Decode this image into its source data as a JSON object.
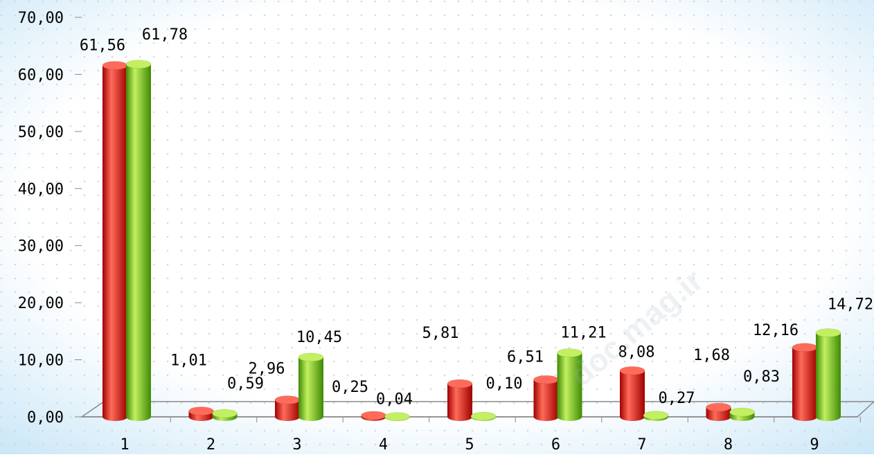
{
  "chart_data": {
    "type": "bar",
    "style": "3d-cylinder",
    "categories": [
      "1",
      "2",
      "3",
      "4",
      "5",
      "6",
      "7",
      "8",
      "9"
    ],
    "series": [
      {
        "color": "#e00000",
        "values": [
          61.56,
          1.01,
          2.96,
          0.25,
          5.81,
          6.51,
          8.08,
          1.68,
          12.16
        ],
        "labels": [
          "61,56",
          "1,01",
          "2,96",
          "0,25",
          "5,81",
          "6,51",
          "8,08",
          "1,68",
          "12,16"
        ]
      },
      {
        "color": "#6cc418",
        "values": [
          61.78,
          0.59,
          10.45,
          0.04,
          0.1,
          11.21,
          0.27,
          0.83,
          14.72
        ],
        "labels": [
          "61,78",
          "0,59",
          "10,45",
          "0,04",
          "0,10",
          "11,21",
          "0,27",
          "0,83",
          "14,72"
        ]
      }
    ],
    "y_ticks": [
      "0,00",
      "10,00",
      "20,00",
      "30,00",
      "40,00",
      "50,00",
      "60,00",
      "70,00"
    ],
    "ylim": [
      0,
      70
    ],
    "grid": "dotted",
    "legend": "none",
    "title": "",
    "xlabel": "",
    "ylabel": ""
  },
  "colors": {
    "background_edge": "#c9e6f7",
    "grid_dot": "#cdd6dd",
    "axis": "#888888",
    "red_light": "#ff6b5a",
    "red_dark": "#a00000",
    "green_light": "#c2f060",
    "green_dark": "#3f8a05"
  },
  "watermark": "doc.mag.ir"
}
